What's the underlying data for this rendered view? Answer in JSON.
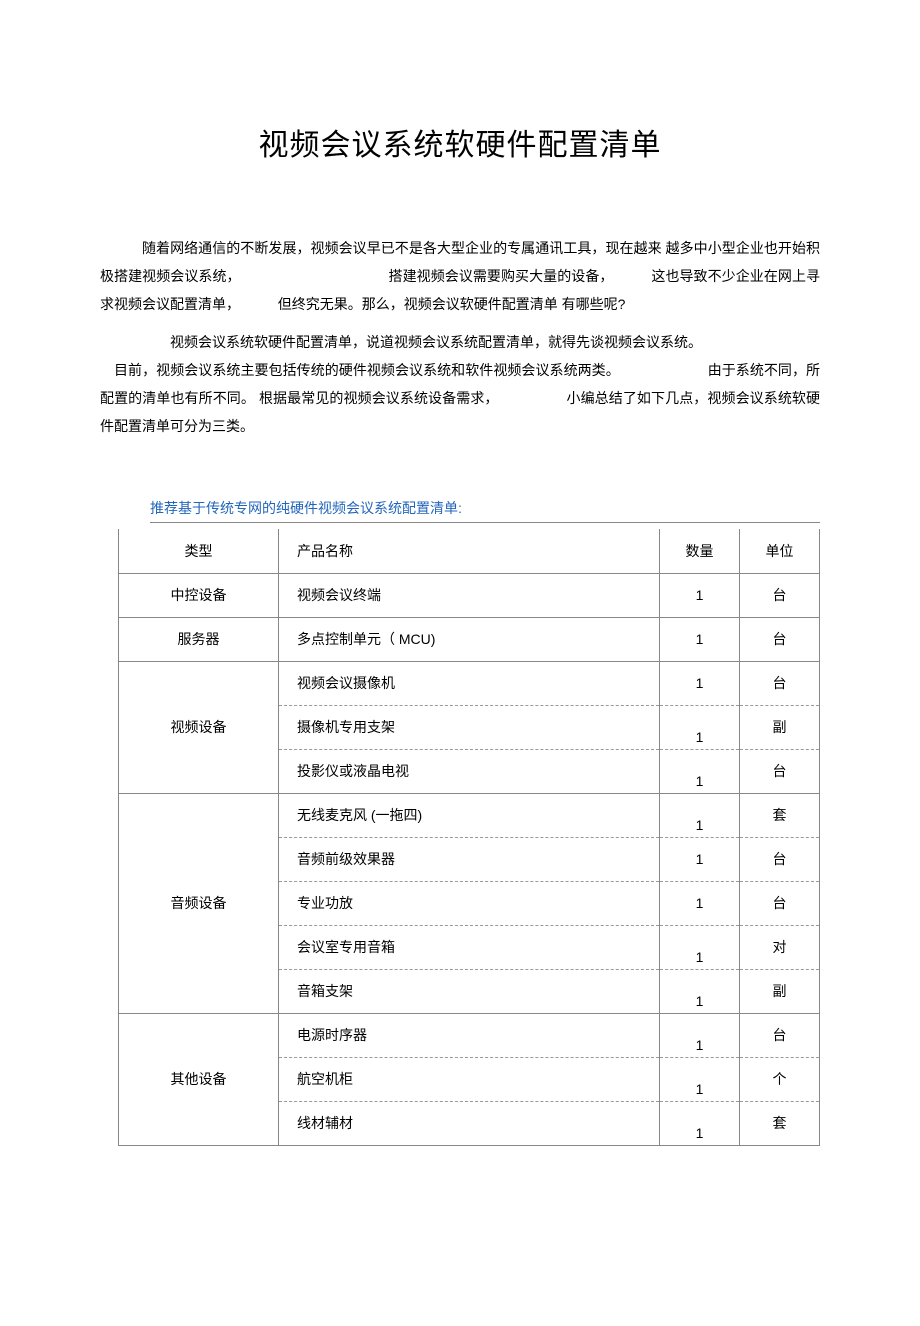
{
  "title": "视频会议系统软硬件配置清单",
  "para1_line1": "随着网络通信的不断发展，视频会议早已不是各大型企业的专属通讯工具，现在越来 越多中小型企业也开始积极搭建视频会议系统，",
  "para1_seg2": "搭建视频会议需要购买大量的设备，",
  "para1_seg3": "这也导致不少企业在网上寻求视频会议配置清单，",
  "para1_seg4": "但终究无果。那么，视频会议软硬件配置清单 有哪些呢?",
  "para2_seg1": "视频会议系统软硬件配置清单，说道视频会议系统配置清单，就得先谈视频会议系统。",
  "para2_seg2": "目前，视频会议系统主要包括传统的硬件视频会议系统和软件视频会议系统两类。",
  "para2_seg3": "由于系统不同，所配置的清单也有所不同。 根据最常见的视频会议系统设备需求，",
  "para2_seg4": "小编总结了如下几点，视频会议系统软硬件配置清单可分为三类。",
  "section_lead": "推荐基于传统专网的纯硬件视频会议系统配置清单:",
  "table": {
    "headers": {
      "type": "类型",
      "name": "产品名称",
      "qty": "数量",
      "unit": "单位"
    },
    "groups": [
      {
        "type": "中控设备",
        "rows": [
          {
            "name": "视频会议终端",
            "qty": "1",
            "unit": "台",
            "qty_align": "ctr"
          }
        ]
      },
      {
        "type": "服务器",
        "rows": [
          {
            "name": "多点控制单元（ MCU)",
            "qty": "1",
            "unit": "台",
            "qty_align": "ctr"
          }
        ]
      },
      {
        "type": "视频设备",
        "rows": [
          {
            "name": "视频会议摄像机",
            "qty": "1",
            "unit": "台",
            "qty_align": "ctr"
          },
          {
            "name": "摄像机专用支架",
            "qty": "1",
            "unit": "副",
            "qty_align": "ctr-bot"
          },
          {
            "name": "投影仪或液晶电视",
            "qty": "1",
            "unit": "台",
            "qty_align": "ctr-bot"
          }
        ]
      },
      {
        "type": "音频设备",
        "rows": [
          {
            "name": "无线麦克风 (一拖四)",
            "qty": "1",
            "unit": "套",
            "qty_align": "ctr-bot"
          },
          {
            "name": "音频前级效果器",
            "qty": "1",
            "unit": "台",
            "qty_align": "ctr"
          },
          {
            "name": "专业功放",
            "qty": "1",
            "unit": "台",
            "qty_align": "ctr"
          },
          {
            "name": "会议室专用音箱",
            "qty": "1",
            "unit": "对",
            "qty_align": "ctr-bot"
          },
          {
            "name": "音箱支架",
            "qty": "1",
            "unit": "副",
            "qty_align": "ctr-bot"
          }
        ]
      },
      {
        "type": "其他设备",
        "rows": [
          {
            "name": "电源时序器",
            "qty": "1",
            "unit": "台",
            "qty_align": "ctr-bot"
          },
          {
            "name": "航空机柜",
            "qty": "1",
            "unit": "个",
            "qty_align": "ctr-bot"
          },
          {
            "name": "线材辅材",
            "qty": "1",
            "unit": "套",
            "qty_align": "ctr-bot"
          }
        ]
      }
    ]
  }
}
